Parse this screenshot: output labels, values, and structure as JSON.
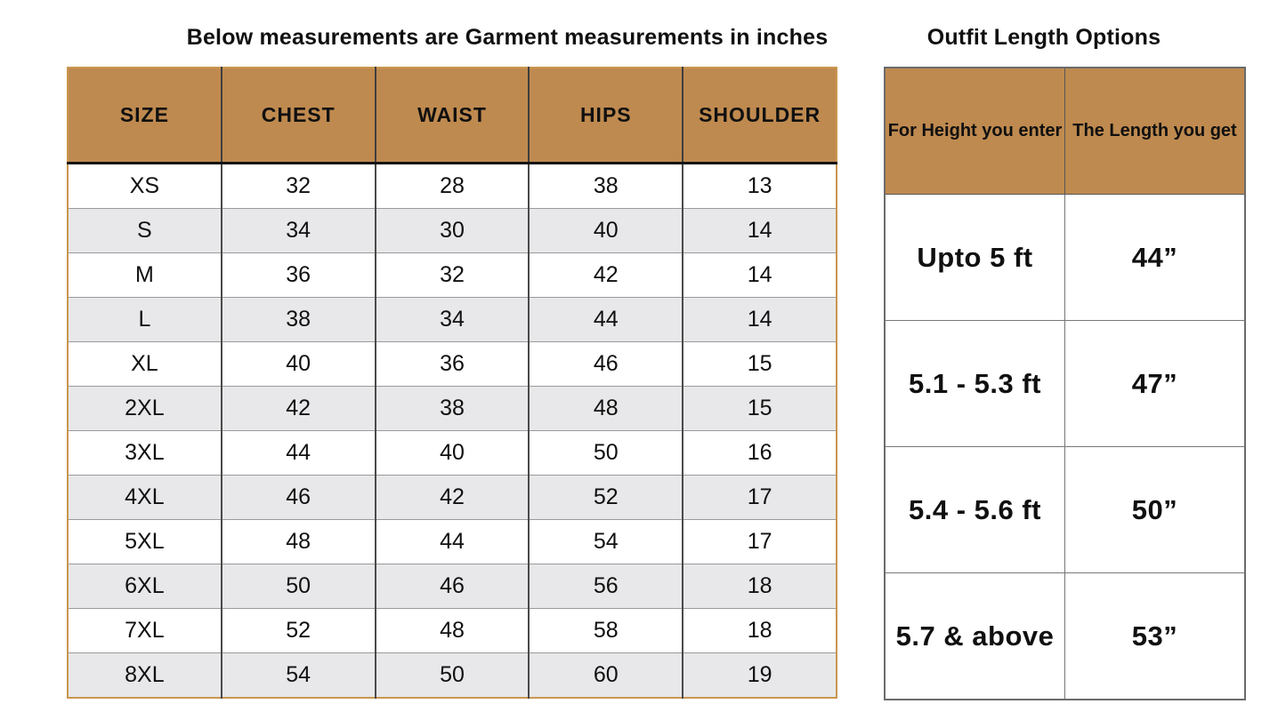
{
  "left_table": {
    "title": "Below measurements are Garment measurements in inches",
    "headers": [
      "SIZE",
      "CHEST",
      "WAIST",
      "HIPS",
      "SHOULDER"
    ],
    "rows": [
      [
        "XS",
        "32",
        "28",
        "38",
        "13"
      ],
      [
        "S",
        "34",
        "30",
        "40",
        "14"
      ],
      [
        "M",
        "36",
        "32",
        "42",
        "14"
      ],
      [
        "L",
        "38",
        "34",
        "44",
        "14"
      ],
      [
        "XL",
        "40",
        "36",
        "46",
        "15"
      ],
      [
        "2XL",
        "42",
        "38",
        "48",
        "15"
      ],
      [
        "3XL",
        "44",
        "40",
        "50",
        "16"
      ],
      [
        "4XL",
        "46",
        "42",
        "52",
        "17"
      ],
      [
        "5XL",
        "48",
        "44",
        "54",
        "17"
      ],
      [
        "6XL",
        "50",
        "46",
        "56",
        "18"
      ],
      [
        "7XL",
        "52",
        "48",
        "58",
        "18"
      ],
      [
        "8XL",
        "54",
        "50",
        "60",
        "19"
      ]
    ]
  },
  "right_table": {
    "title": "Outfit Length Options",
    "headers": [
      "For Height you enter",
      "The Length you get"
    ],
    "rows": [
      [
        "Upto 5 ft",
        "44”"
      ],
      [
        "5.1 - 5.3 ft",
        "47”"
      ],
      [
        "5.4 - 5.6 ft",
        "50”"
      ],
      [
        "5.7 & above",
        "53”"
      ]
    ]
  },
  "colors": {
    "header_bg": "#BF8A4F",
    "row_alt_bg": "#E8E8EA",
    "left_table_outer_border": "#C9964F",
    "grid_line_dark": "#4A4A4A",
    "grid_line_light": "#9A9A9A",
    "right_table_border": "#6B6B6B",
    "text": "#101010"
  }
}
